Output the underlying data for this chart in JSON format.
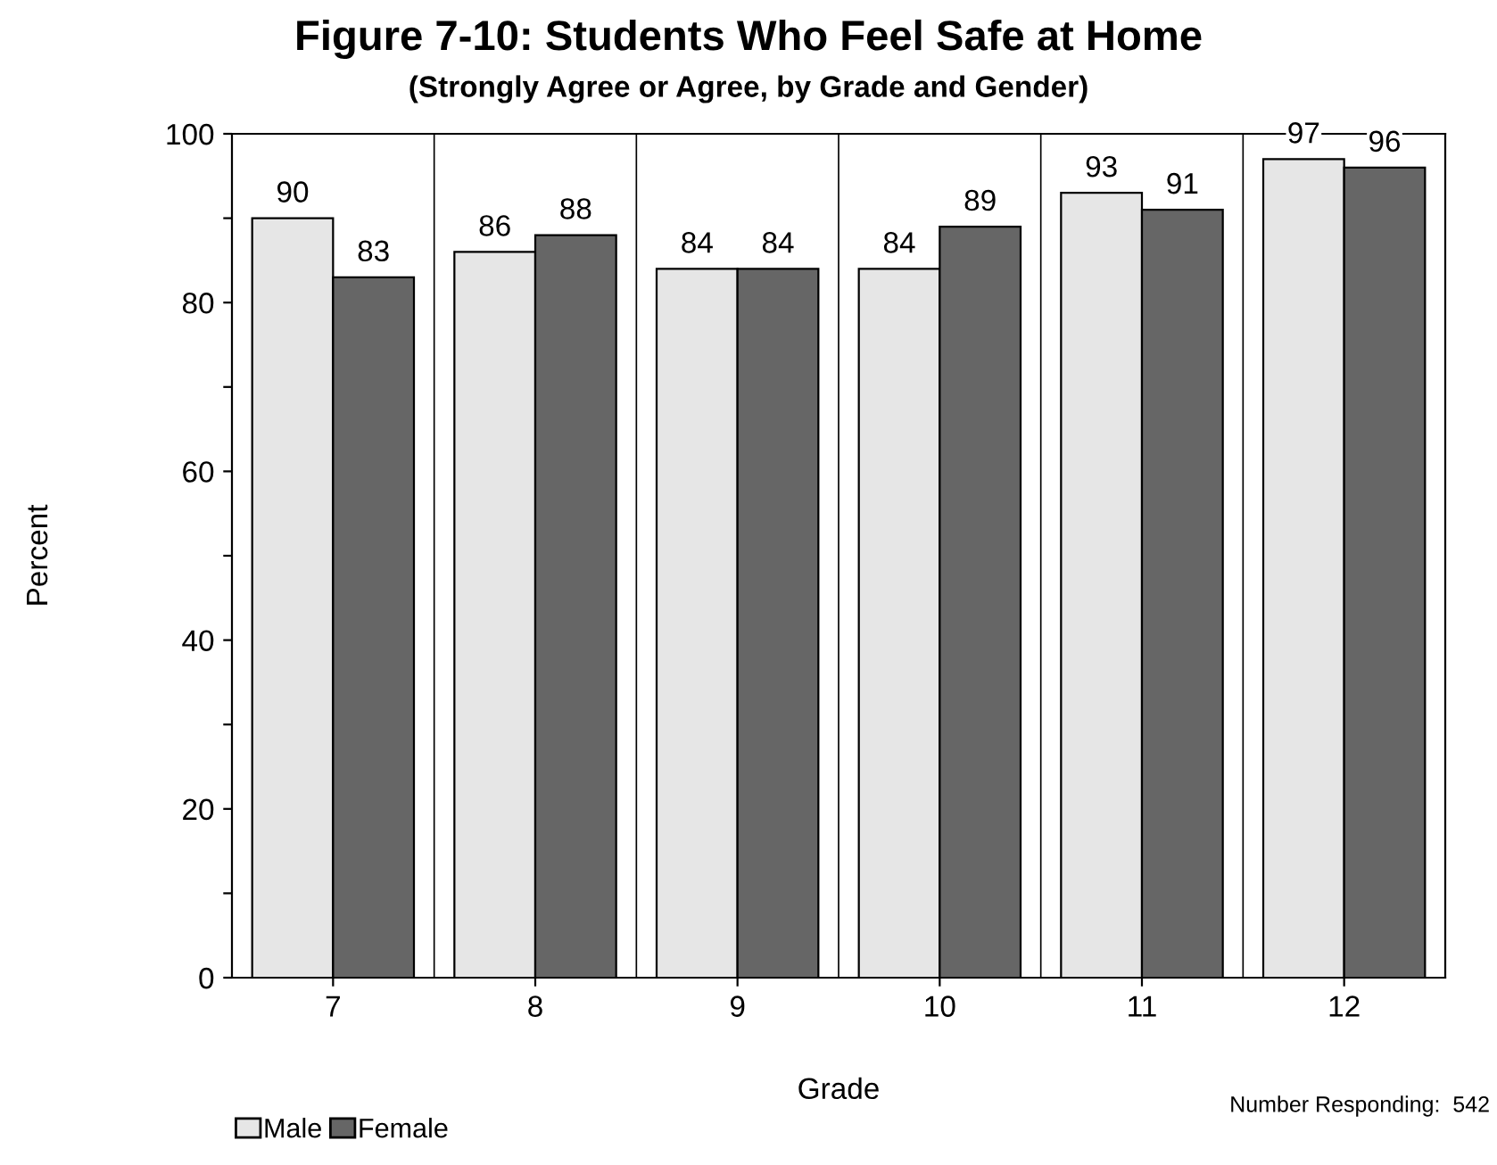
{
  "chart_data": {
    "type": "bar",
    "title": "Figure 7-10: Students Who Feel Safe at Home",
    "subtitle": "(Strongly Agree or Agree, by Grade and Gender)",
    "xlabel": "Grade",
    "ylabel": "Percent",
    "categories": [
      "7",
      "8",
      "9",
      "10",
      "11",
      "12"
    ],
    "series": [
      {
        "name": "Male",
        "color": "#e6e6e6",
        "values": [
          90,
          86,
          84,
          84,
          93,
          97
        ]
      },
      {
        "name": "Female",
        "color": "#666666",
        "values": [
          83,
          88,
          84,
          89,
          91,
          96
        ]
      }
    ],
    "ylim": [
      0,
      100
    ],
    "yticks": [
      0,
      {
        "value": 10,
        "label": null
      },
      20,
      {
        "value": 30,
        "label": null
      },
      40,
      {
        "value": 50,
        "label": null
      },
      60,
      {
        "value": 70,
        "label": null
      },
      80,
      {
        "value": 90,
        "label": null
      },
      100
    ],
    "grid": "x",
    "data_labels": true,
    "legend": "bottom left",
    "annotations": [
      "Number Responding:  542"
    ]
  }
}
